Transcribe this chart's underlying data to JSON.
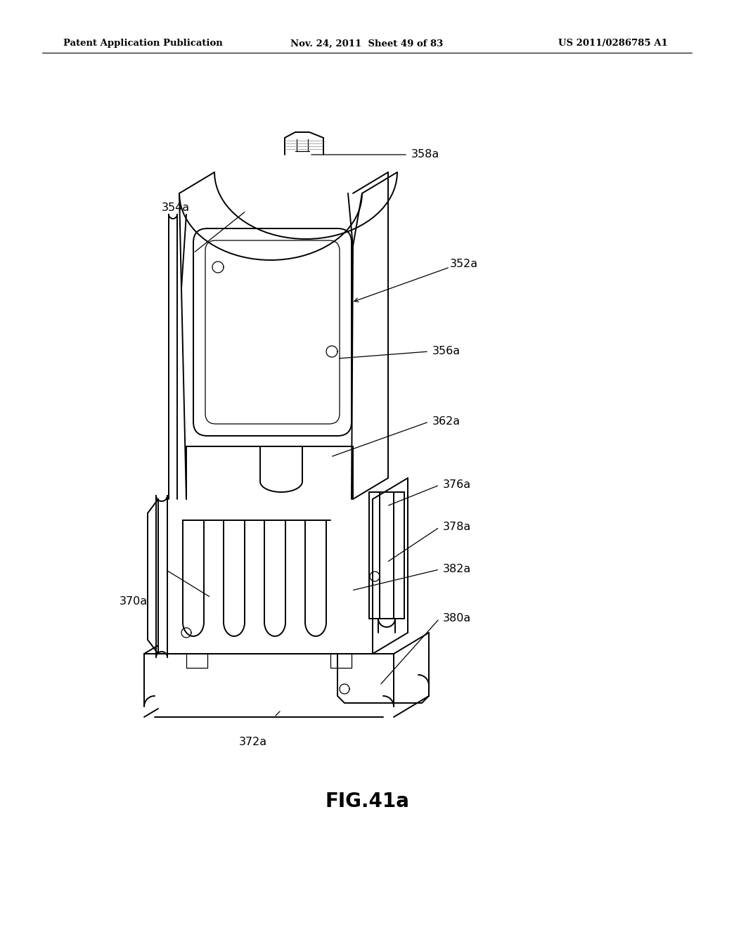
{
  "title": "FIG.41a",
  "header_left": "Patent Application Publication",
  "header_mid": "Nov. 24, 2011  Sheet 49 of 83",
  "header_right": "US 2011/0286785 A1",
  "background_color": "#ffffff",
  "line_color": "#000000",
  "fig_title_fontsize": 20,
  "header_fontsize": 9.5,
  "label_fontsize": 11.5
}
